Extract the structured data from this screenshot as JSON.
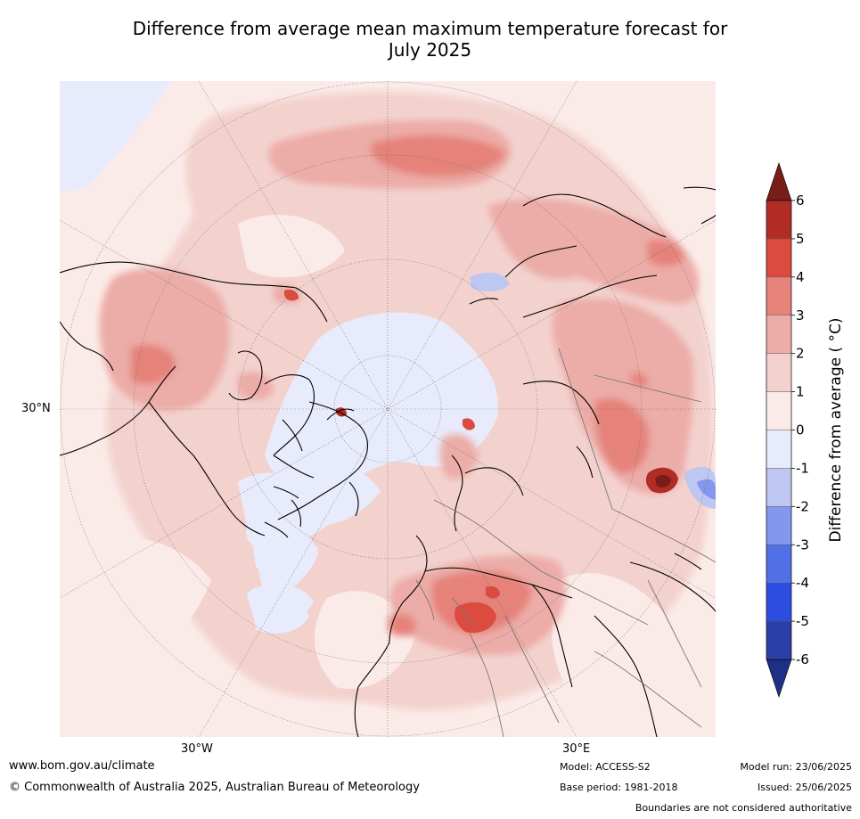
{
  "title": {
    "line1": "Difference from average mean maximum temperature forecast for",
    "line2": "July 2025"
  },
  "map": {
    "labels": {
      "lat": "30°N",
      "lon_w": "30°W",
      "lon_e": "30°E"
    }
  },
  "colors": {
    "ocean_neutral": "#fbebe8",
    "land_line": "#000000",
    "grid": "#666666",
    "bins": [
      {
        "range": [
          -6,
          -5
        ],
        "color": "#2a3fa7"
      },
      {
        "range": [
          -5,
          -4
        ],
        "color": "#2c4de0"
      },
      {
        "range": [
          -4,
          -3
        ],
        "color": "#5170e6"
      },
      {
        "range": [
          -3,
          -2
        ],
        "color": "#8497ec"
      },
      {
        "range": [
          -2,
          -1
        ],
        "color": "#bec7f2"
      },
      {
        "range": [
          -1,
          0
        ],
        "color": "#e8ebfb"
      },
      {
        "range": [
          0,
          1
        ],
        "color": "#fbebe8"
      },
      {
        "range": [
          1,
          2
        ],
        "color": "#f3d2ce"
      },
      {
        "range": [
          2,
          3
        ],
        "color": "#ecaca7"
      },
      {
        "range": [
          3,
          4
        ],
        "color": "#e5827a"
      },
      {
        "range": [
          4,
          5
        ],
        "color": "#db4b3f"
      },
      {
        "range": [
          5,
          6
        ],
        "color": "#b02c25"
      }
    ],
    "over": "#7a1c17",
    "under": "#1e2f86"
  },
  "chart_data": {
    "type": "heatmap",
    "title": "Difference from average mean maximum temperature forecast for July 2025",
    "colorbar": {
      "label": "Difference from average ( °C)",
      "ticks": [
        6,
        5,
        4,
        3,
        2,
        1,
        0,
        -1,
        -2,
        -3,
        -4,
        -5,
        -6
      ],
      "range": [
        -6,
        6
      ],
      "extend": "both"
    },
    "projection": "north polar stereographic"
  },
  "footer": {
    "url": "www.bom.gov.au/climate",
    "copyright": "© Commonwealth of Australia 2025, Australian Bureau of Meteorology",
    "model": "Model: ACCESS-S2",
    "base_period": "Base period: 1981-2018",
    "model_run": "Model run: 23/06/2025",
    "issued": "Issued: 25/06/2025",
    "disclaimer": "Boundaries are not considered authoritative"
  }
}
